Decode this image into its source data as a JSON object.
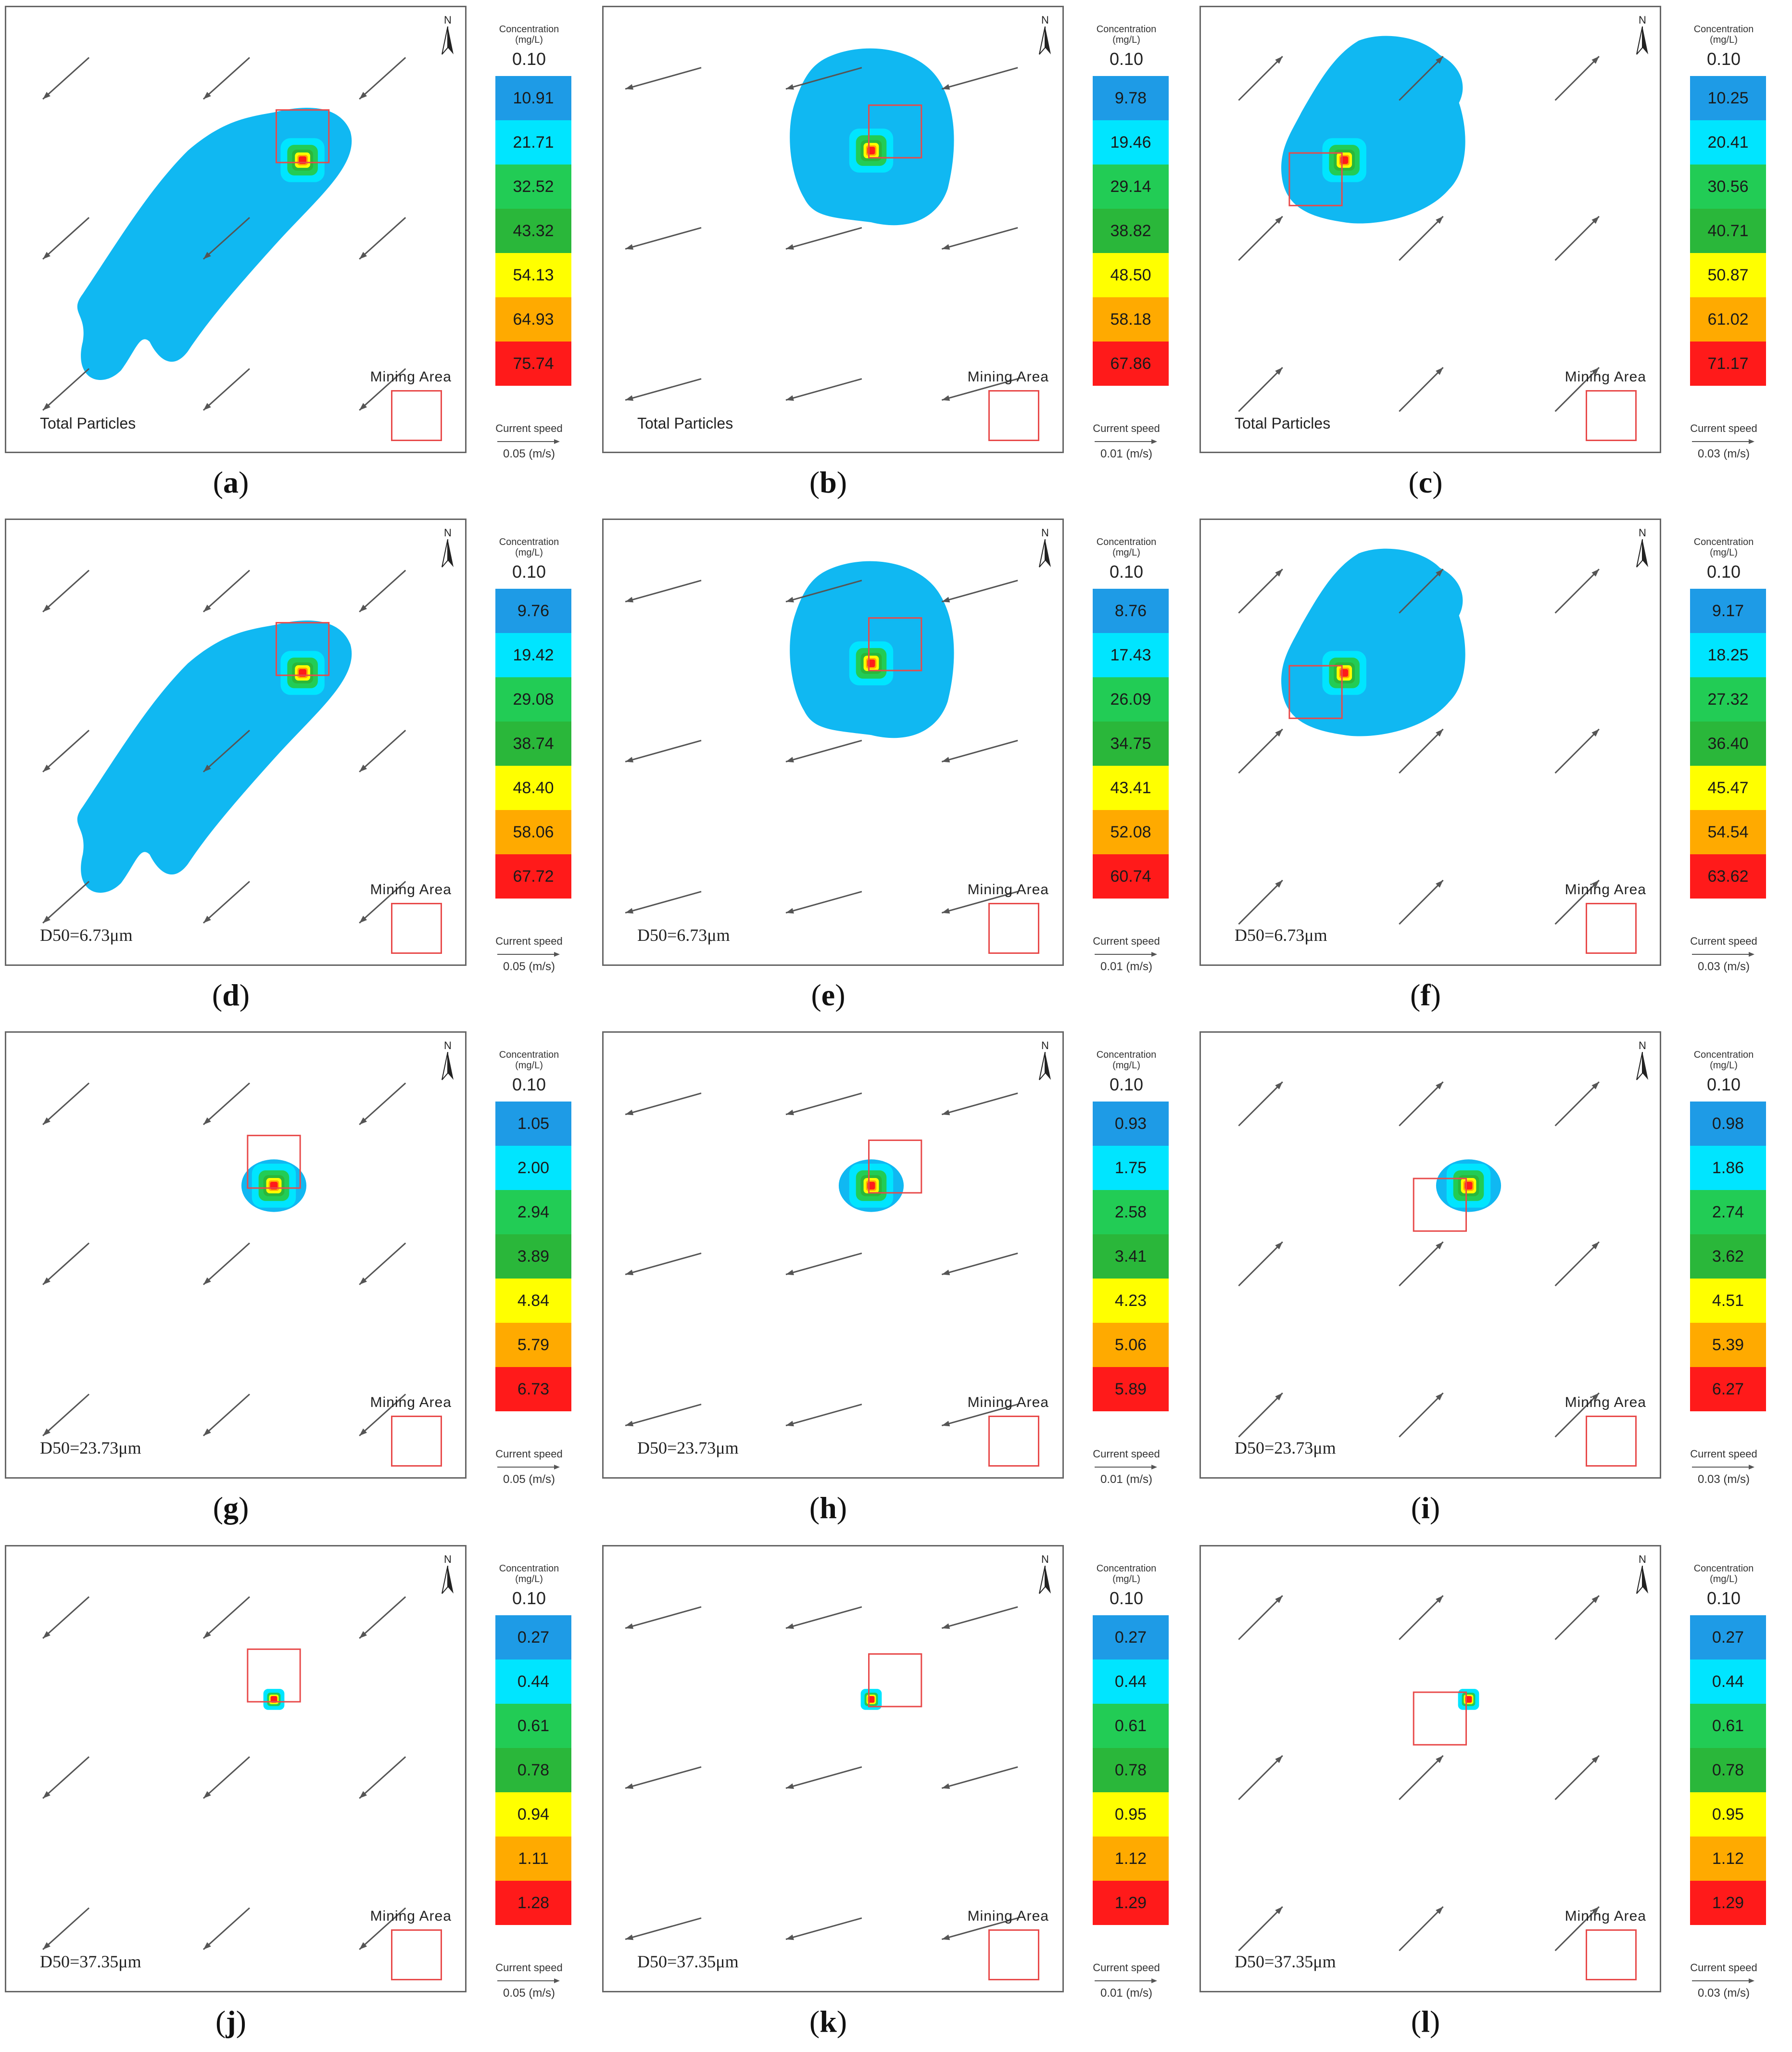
{
  "legend_title": "Concentration (mg/L)",
  "legend_min": "0.10",
  "mining_label": "Mining Area",
  "speed_label": "Current speed",
  "colors": {
    "bands": [
      "#1e9be6",
      "#00e5ff",
      "#22cc55",
      "#2ab73a",
      "#ffff00",
      "#ffaa00",
      "#ff1a1a"
    ],
    "plume_outer": "#10b8f2",
    "mining_box": "#e84a4a",
    "arrows": "#555555"
  },
  "panels": [
    {
      "id": "a",
      "caption": "a",
      "label": "Total Particles",
      "speed": "0.05 (m/s)",
      "flow": "sw",
      "plume": "elongated-sw",
      "values": [
        "10.91",
        "21.71",
        "32.52",
        "43.32",
        "54.13",
        "64.93",
        "75.74"
      ]
    },
    {
      "id": "b",
      "caption": "b",
      "label": "Total Particles",
      "speed": "0.01 (m/s)",
      "flow": "w",
      "plume": "round",
      "values": [
        "9.78",
        "19.46",
        "29.14",
        "38.82",
        "48.50",
        "58.18",
        "67.86"
      ]
    },
    {
      "id": "c",
      "caption": "c",
      "label": "Total Particles",
      "speed": "0.03 (m/s)",
      "flow": "ne",
      "plume": "blob-ne",
      "values": [
        "10.25",
        "20.41",
        "30.56",
        "40.71",
        "50.87",
        "61.02",
        "71.17"
      ]
    },
    {
      "id": "d",
      "caption": "d",
      "label": "D50=6.73μm",
      "speed": "0.05 (m/s)",
      "flow": "sw",
      "plume": "elongated-sw",
      "values": [
        "9.76",
        "19.42",
        "29.08",
        "38.74",
        "48.40",
        "58.06",
        "67.72"
      ]
    },
    {
      "id": "e",
      "caption": "e",
      "label": "D50=6.73μm",
      "speed": "0.01 (m/s)",
      "flow": "w",
      "plume": "round",
      "values": [
        "8.76",
        "17.43",
        "26.09",
        "34.75",
        "43.41",
        "52.08",
        "60.74"
      ]
    },
    {
      "id": "f",
      "caption": "f",
      "label": "D50=6.73μm",
      "speed": "0.03 (m/s)",
      "flow": "ne",
      "plume": "blob-ne",
      "values": [
        "9.17",
        "18.25",
        "27.32",
        "36.40",
        "45.47",
        "54.54",
        "63.62"
      ]
    },
    {
      "id": "g",
      "caption": "g",
      "label": "D50=23.73μm",
      "speed": "0.05 (m/s)",
      "flow": "sw",
      "plume": "small",
      "values": [
        "1.05",
        "2.00",
        "2.94",
        "3.89",
        "4.84",
        "5.79",
        "6.73"
      ]
    },
    {
      "id": "h",
      "caption": "h",
      "label": "D50=23.73μm",
      "speed": "0.01 (m/s)",
      "flow": "w",
      "plume": "small",
      "values": [
        "0.93",
        "1.75",
        "2.58",
        "3.41",
        "4.23",
        "5.06",
        "5.89"
      ]
    },
    {
      "id": "i",
      "caption": "i",
      "label": "D50=23.73μm",
      "speed": "0.03 (m/s)",
      "flow": "ne",
      "plume": "small",
      "values": [
        "0.98",
        "1.86",
        "2.74",
        "3.62",
        "4.51",
        "5.39",
        "6.27"
      ]
    },
    {
      "id": "j",
      "caption": "j",
      "label": "D50=37.35μm",
      "speed": "0.05 (m/s)",
      "flow": "sw",
      "plume": "tiny",
      "values": [
        "0.27",
        "0.44",
        "0.61",
        "0.78",
        "0.94",
        "1.11",
        "1.28"
      ]
    },
    {
      "id": "k",
      "caption": "k",
      "label": "D50=37.35μm",
      "speed": "0.01 (m/s)",
      "flow": "w",
      "plume": "tiny",
      "values": [
        "0.27",
        "0.44",
        "0.61",
        "0.78",
        "0.95",
        "1.12",
        "1.29"
      ]
    },
    {
      "id": "l",
      "caption": "l",
      "label": "D50=37.35μm",
      "speed": "0.03 (m/s)",
      "flow": "ne",
      "plume": "tiny",
      "values": [
        "0.27",
        "0.44",
        "0.61",
        "0.78",
        "0.95",
        "1.12",
        "1.29"
      ]
    }
  ]
}
